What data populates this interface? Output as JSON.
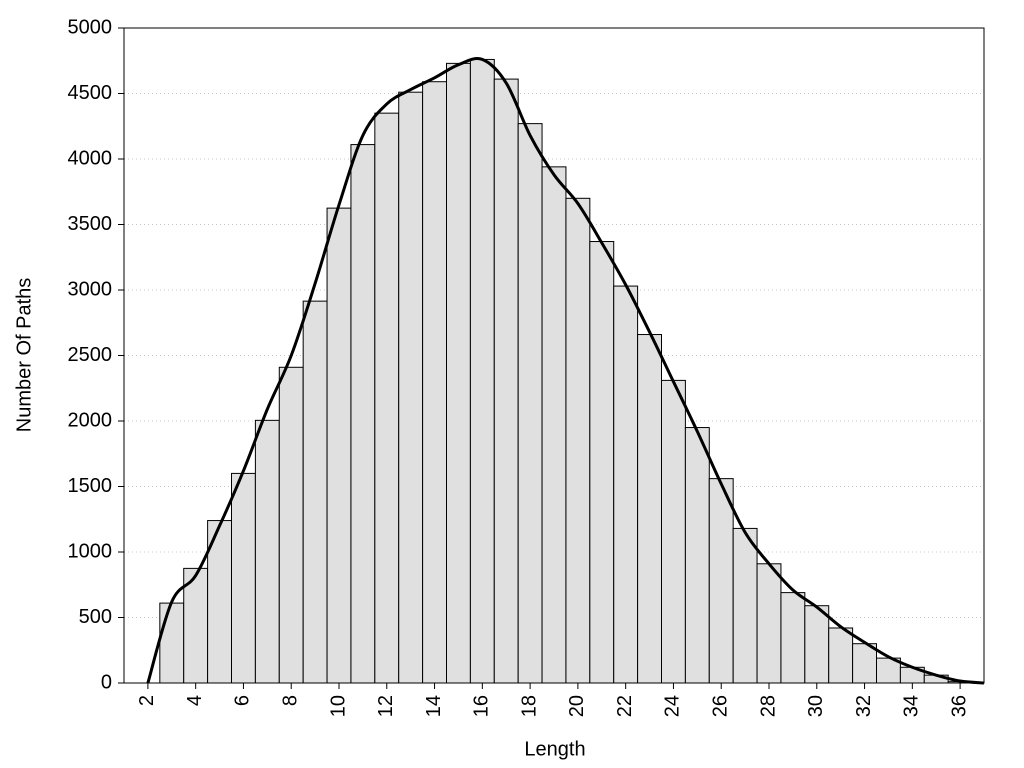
{
  "chart_data": {
    "type": "histogram",
    "x_label": "Length",
    "y_label": "Number Of Paths",
    "bins": [
      2.5,
      3.5,
      4.5,
      5.5,
      6.5,
      7.5,
      8.5,
      9.5,
      10.5,
      11.5,
      12.5,
      13.5,
      14.5,
      15.5,
      16.5,
      17.5,
      18.5,
      19.5,
      20.5,
      21.5,
      22.5,
      23.5,
      24.5,
      25.5,
      26.5,
      27.5,
      28.5,
      29.5,
      30.5,
      31.5,
      32.5,
      33.5,
      34.5,
      35.5,
      36.5
    ],
    "values": [
      610,
      875,
      1240,
      1600,
      2005,
      2410,
      2915,
      3625,
      4110,
      4350,
      4510,
      4590,
      4730,
      4760,
      4610,
      4270,
      3940,
      3700,
      3370,
      3030,
      2660,
      2310,
      1950,
      1560,
      1180,
      910,
      690,
      590,
      420,
      300,
      190,
      120,
      60,
      10
    ],
    "color": "#e0e0e0",
    "curve": {
      "color": "#000000",
      "x": [
        2,
        3,
        4,
        5,
        6,
        7,
        8,
        9,
        10,
        11,
        12,
        13,
        14,
        15,
        16,
        17,
        18,
        19,
        20,
        21,
        22,
        23,
        24,
        25,
        26,
        27,
        28,
        29,
        30,
        31,
        32,
        33,
        34,
        35,
        36,
        37
      ],
      "values": [
        0,
        620,
        820,
        1200,
        1620,
        2090,
        2500,
        3050,
        3650,
        4180,
        4420,
        4530,
        4620,
        4720,
        4760,
        4580,
        4180,
        3880,
        3660,
        3360,
        3040,
        2680,
        2300,
        1920,
        1520,
        1150,
        910,
        710,
        580,
        430,
        310,
        200,
        120,
        60,
        15,
        0
      ]
    },
    "xlim": [
      1,
      37
    ],
    "ylim": [
      0,
      5000
    ],
    "xticks": [
      2,
      4,
      6,
      8,
      10,
      12,
      14,
      16,
      18,
      20,
      22,
      24,
      26,
      28,
      30,
      32,
      34,
      36
    ],
    "yticks": [
      0,
      500,
      1000,
      1500,
      2000,
      2500,
      3000,
      3500,
      4000,
      4500,
      5000
    ],
    "grid": true
  }
}
